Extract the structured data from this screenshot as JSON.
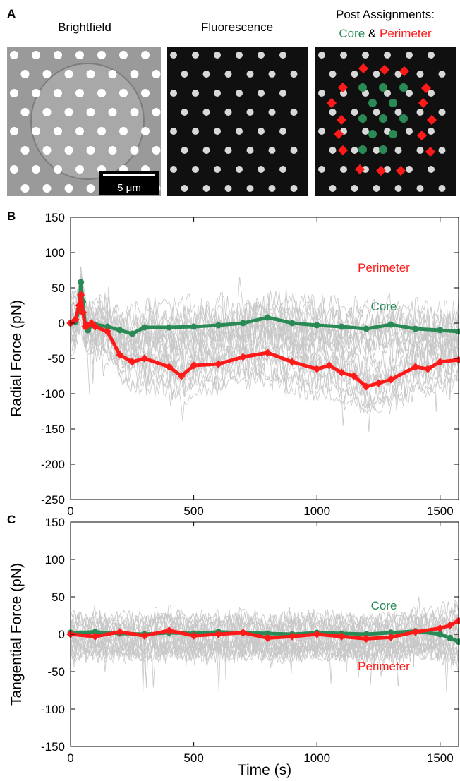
{
  "panel_a": {
    "letter": "A",
    "titles": {
      "brightfield": "Brightfield",
      "fluorescence": "Fluorescence",
      "post_assignments": "Post Assignments:"
    },
    "legend": {
      "core": "Core",
      "amp": "&",
      "perimeter": "Perimeter"
    },
    "scale_bar_label": "5 μm",
    "colors": {
      "core": "#2a8a55",
      "perimeter": "#ff1a1a"
    }
  },
  "chart_data": [
    {
      "type": "line",
      "panel_letter": "B",
      "ylabel": "Radial Force (pN)",
      "xlabel": "",
      "xlim": [
        0,
        1575
      ],
      "ylim": [
        -250,
        150
      ],
      "x_ticks": [
        0,
        500,
        1000,
        1500
      ],
      "y_ticks": [
        150,
        100,
        50,
        0,
        -50,
        -100,
        -150,
        -200,
        -250
      ],
      "annotations": [
        {
          "text": "Core",
          "color": "#2a8a55"
        },
        {
          "text": "Perimeter",
          "color": "#ff1a1a"
        }
      ],
      "series": [
        {
          "name": "Core",
          "color": "#2a8a55",
          "x": [
            0,
            20,
            35,
            42,
            50,
            60,
            70,
            85,
            100,
            150,
            200,
            250,
            300,
            400,
            500,
            600,
            700,
            800,
            900,
            1000,
            1100,
            1200,
            1300,
            1400,
            1500,
            1575
          ],
          "y": [
            0,
            2,
            20,
            58,
            30,
            -5,
            -10,
            -3,
            -2,
            -5,
            -10,
            -15,
            -6,
            -6,
            -5,
            -3,
            0,
            8,
            0,
            -3,
            -5,
            -8,
            -2,
            -8,
            -10,
            -12
          ]
        },
        {
          "name": "Perimeter",
          "color": "#ff1a1a",
          "x": [
            0,
            20,
            35,
            42,
            50,
            60,
            70,
            85,
            100,
            150,
            200,
            250,
            300,
            400,
            450,
            500,
            600,
            700,
            800,
            900,
            1000,
            1050,
            1100,
            1150,
            1200,
            1250,
            1300,
            1400,
            1450,
            1500,
            1575
          ],
          "y": [
            0,
            5,
            25,
            40,
            15,
            -5,
            -3,
            0,
            -5,
            -12,
            -45,
            -55,
            -50,
            -62,
            -75,
            -60,
            -58,
            -48,
            -42,
            -55,
            -65,
            -60,
            -70,
            -75,
            -90,
            -85,
            -80,
            -62,
            -65,
            -55,
            -52
          ]
        }
      ]
    },
    {
      "type": "line",
      "panel_letter": "C",
      "ylabel": "Tangential Force (pN)",
      "xlabel": "Time (s)",
      "xlim": [
        0,
        1575
      ],
      "ylim": [
        -150,
        150
      ],
      "x_ticks": [
        0,
        500,
        1000,
        1500
      ],
      "y_ticks": [
        150,
        100,
        50,
        0,
        -50,
        -100,
        -150
      ],
      "annotations": [
        {
          "text": "Core",
          "color": "#2a8a55"
        },
        {
          "text": "Perimeter",
          "color": "#ff1a1a"
        }
      ],
      "series": [
        {
          "name": "Core",
          "color": "#2a8a55",
          "x": [
            0,
            100,
            200,
            300,
            400,
            500,
            600,
            700,
            800,
            900,
            1000,
            1100,
            1200,
            1300,
            1400,
            1500,
            1540,
            1575
          ],
          "y": [
            2,
            3,
            1,
            0,
            2,
            1,
            3,
            2,
            1,
            0,
            2,
            1,
            0,
            2,
            4,
            0,
            -5,
            -10
          ]
        },
        {
          "name": "Perimeter",
          "color": "#ff1a1a",
          "x": [
            0,
            100,
            200,
            300,
            400,
            500,
            600,
            700,
            800,
            900,
            1000,
            1100,
            1200,
            1300,
            1400,
            1500,
            1540,
            1575
          ],
          "y": [
            0,
            -3,
            3,
            -2,
            5,
            -2,
            0,
            2,
            -5,
            -3,
            0,
            -3,
            -6,
            -4,
            3,
            8,
            12,
            18
          ]
        }
      ]
    }
  ]
}
